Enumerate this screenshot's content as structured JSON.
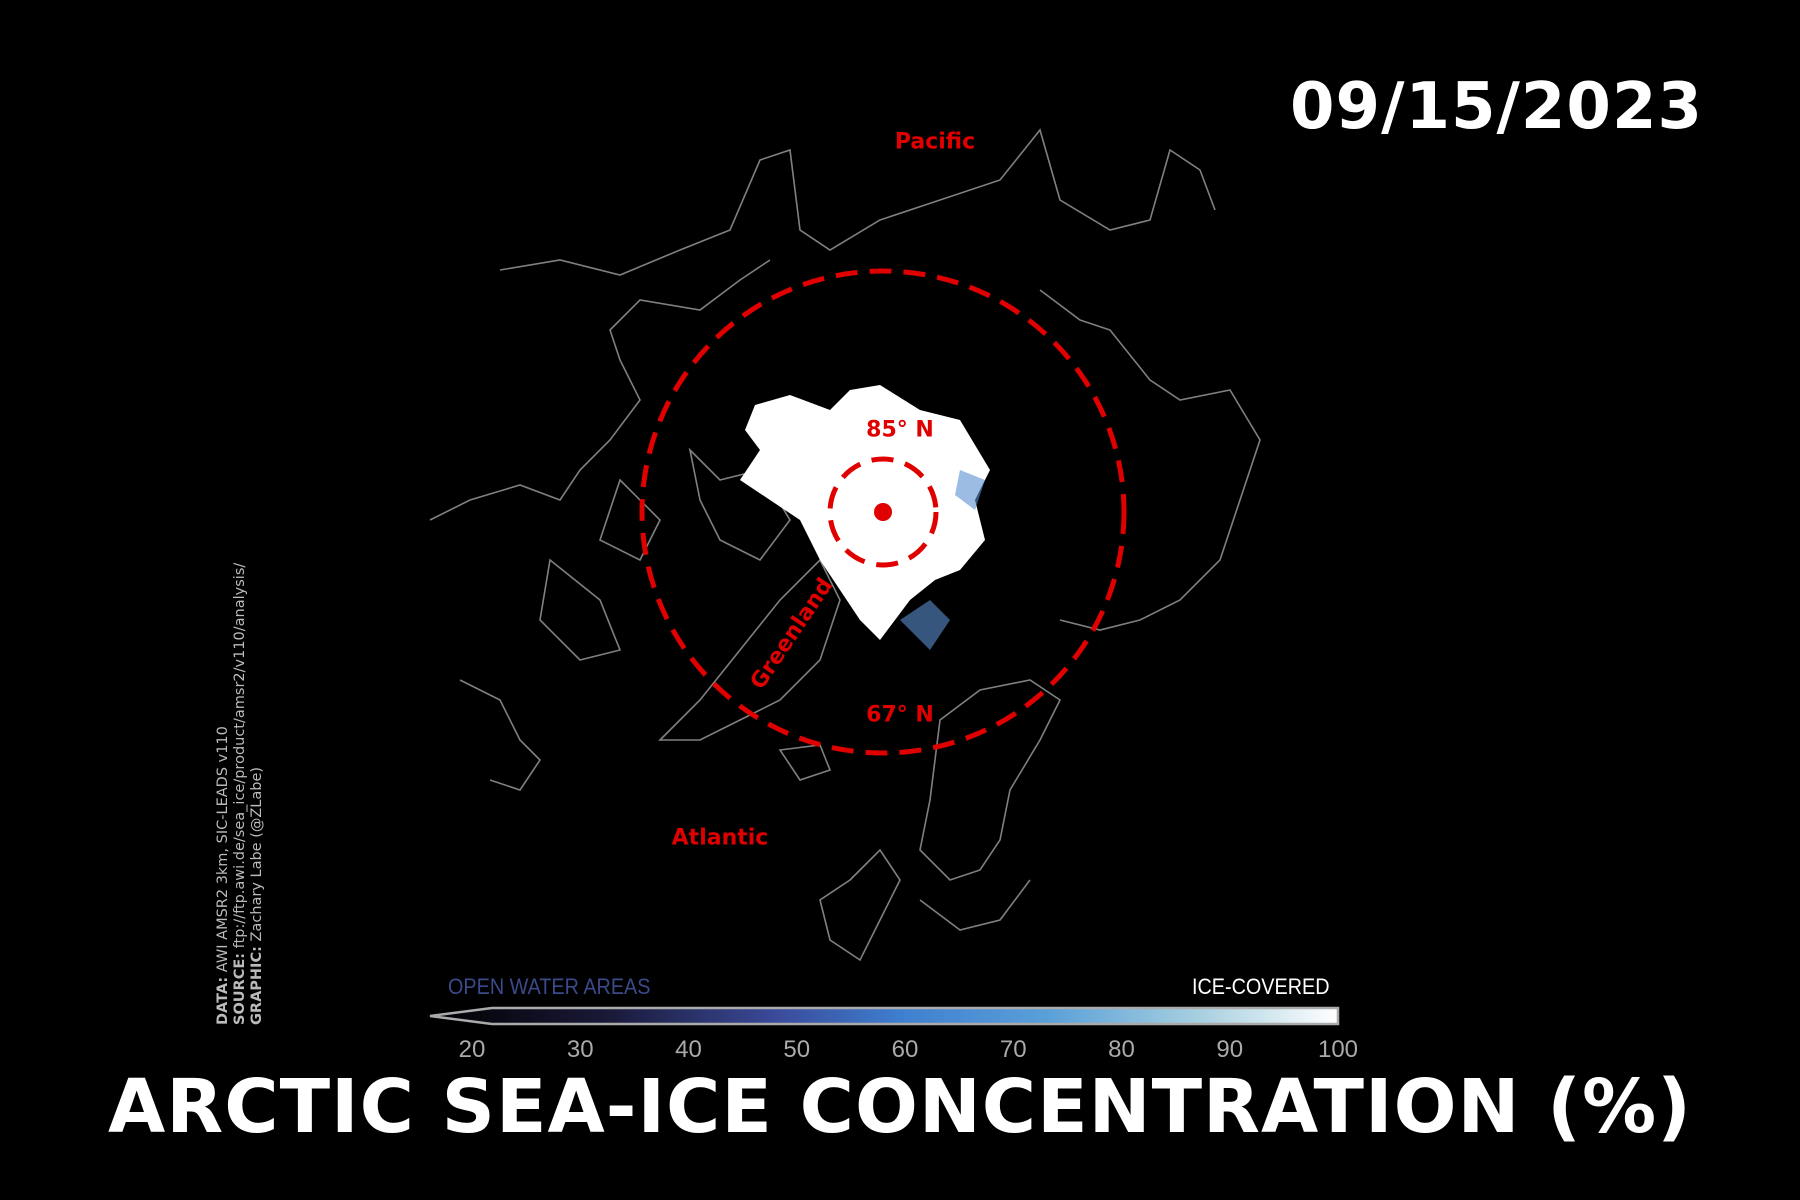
{
  "date": "09/15/2023",
  "title": "ARCTIC SEA-ICE CONCENTRATION (%)",
  "credits": {
    "data_label": "DATA:",
    "data_value": " AWI AMSR2 3km, SIC-LEADS v110",
    "source_label": "SOURCE:",
    "source_value": " ftp://ftp.awi.de/sea_ice/product/amsr2/v110/analysis/",
    "graphic_label": "GRAPHIC:",
    "graphic_value": " Zachary Labe (@ZLabe)"
  },
  "map_labels": {
    "pacific": "Pacific",
    "atlantic": "Atlantic",
    "greenland": "Greenland",
    "lat85": "85° N",
    "lat67": "67° N"
  },
  "colorbar": {
    "left_label": "OPEN WATER AREAS",
    "right_label": "ICE-COVERED",
    "ticks": [
      "20",
      "30",
      "40",
      "50",
      "60",
      "70",
      "80",
      "90",
      "100"
    ],
    "range": [
      20,
      100
    ],
    "extend": "min",
    "colors": [
      "#000000",
      "#1a1a3a",
      "#3a4a9a",
      "#3f7fd0",
      "#5aa0d8",
      "#a8d0e0",
      "#ffffff"
    ]
  },
  "colors": {
    "circle": "#e00000",
    "coastline": "#808080",
    "ice": "#ffffff",
    "background": "#000000"
  }
}
